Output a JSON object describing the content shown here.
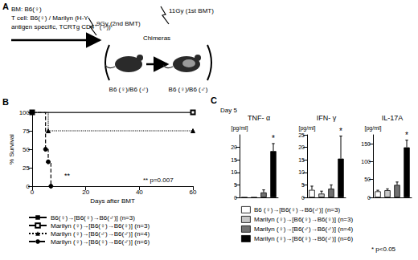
{
  "panel_labels": [
    "A",
    "B",
    "C"
  ],
  "diagram": {
    "source_lines": [
      "BM: B6(♀)",
      "T cell: B6(♀) / Marilyn (H-Y",
      "antigen specific, TCRTg CD4⁺ (♀))"
    ],
    "second_irradiation": "9Gy (2nd BMT)",
    "group_title": "Chimeras",
    "first_irradiation": "11Gy (1st BMT)",
    "recipients": [
      "B6 (♀)/B6 (♂)",
      "B6 (♀)/B6 (♂)"
    ]
  },
  "panel_c": {
    "subtitle": "Day 5",
    "note": "* p<0.05"
  },
  "chart_data": [
    {
      "type": "survival",
      "x_label": "Days after BMT",
      "y_label": "% Survival",
      "xlim": [
        0,
        60
      ],
      "xticks": [
        0,
        20,
        40,
        60
      ],
      "ylim": [
        0,
        100
      ],
      "yticks": [
        0,
        25,
        50,
        75,
        100
      ],
      "grid": false,
      "legend": "bottom",
      "annotations": [
        "**",
        "** p=0.007"
      ],
      "series": [
        {
          "name": "B6(♀)→[B6(♀)→B6(♂)] (n=3)",
          "color": "#000000",
          "marker": "square",
          "line_style": "solid",
          "x": [
            0,
            60
          ],
          "values": [
            100,
            100
          ]
        },
        {
          "name": "Marilyn (♀)→[B6(♀)→B6(♀)] (n=3)",
          "color": "#000000",
          "marker": "open_square",
          "line_style": "solid",
          "x": [
            0,
            60
          ],
          "values": [
            100,
            100
          ]
        },
        {
          "name": "Marilyn (♀)→[B6(♂)→B6(♂)] (n=4)",
          "color": "#000000",
          "marker": "triangle",
          "line_style": "dotted",
          "x": [
            0,
            6,
            60
          ],
          "values": [
            100,
            75,
            75
          ]
        },
        {
          "name": "Marilyn (♀)→[B6(♀)→B6(♂)] (n=6)",
          "color": "#000000",
          "marker": "circle",
          "line_style": "dashed",
          "x": [
            0,
            5,
            6,
            7
          ],
          "values": [
            100,
            50,
            33,
            0
          ]
        }
      ]
    },
    {
      "type": "bar",
      "title": "TNF- α",
      "y_label": "[pg/ml]",
      "ylim": [
        0,
        25
      ],
      "yticks": [
        0,
        5,
        10,
        15,
        20
      ],
      "tick_labels": "y",
      "grid": false,
      "legend": "bottom",
      "series": [
        {
          "name": "B6 (♀)→[B6(♀)→B6(♂)] (n=3)",
          "color": "#ffffff",
          "values": [
            0
          ],
          "error": [
            0
          ]
        },
        {
          "name": "Marilyn (♀)→[B6(♀)→B6(♀)] (n=3)",
          "color": "#c8c8c8",
          "values": [
            0
          ],
          "error": [
            0
          ]
        },
        {
          "name": "Marilyn (♀)→[B6(♂)→B6(♂)] (n=4)",
          "color": "#707070",
          "values": [
            2
          ],
          "error": [
            1
          ]
        },
        {
          "name": "Marilyn (♀)→[B6(♀)→B6(♂)] (n=6)",
          "color": "#000000",
          "values": [
            18.5
          ],
          "error": [
            3
          ],
          "annotation": "*"
        }
      ]
    },
    {
      "type": "bar",
      "title": "IFN- γ",
      "y_label": "[pg/ml]",
      "ylim": [
        0,
        25
      ],
      "yticks": [
        0,
        5,
        10,
        15,
        20,
        25
      ],
      "tick_labels": "y",
      "grid": false,
      "legend": "bottom",
      "series": [
        {
          "name": "B6 (♀)→[B6(♀)→B6(♂)] (n=3)",
          "color": "#ffffff",
          "values": [
            3
          ],
          "error": [
            1.5
          ]
        },
        {
          "name": "Marilyn (♀)→[B6(♀)→B6(♀)] (n=3)",
          "color": "#c8c8c8",
          "values": [
            1.5
          ],
          "error": [
            1
          ]
        },
        {
          "name": "Marilyn (♀)→[B6(♂)→B6(♂)] (n=4)",
          "color": "#707070",
          "values": [
            3.5
          ],
          "error": [
            1.5
          ]
        },
        {
          "name": "Marilyn (♀)→[B6(♀)→B6(♂)] (n=6)",
          "color": "#000000",
          "values": [
            15.5
          ],
          "error": [
            9
          ],
          "annotation": "*"
        }
      ]
    },
    {
      "type": "bar",
      "title": "IL-17A",
      "y_label": "[pg/ml]",
      "ylim": [
        0,
        175
      ],
      "yticks": [
        0,
        50,
        100,
        150
      ],
      "tick_labels": "y",
      "grid": false,
      "legend": "bottom",
      "series": [
        {
          "name": "B6 (♀)→[B6(♀)→B6(♂)] (n=3)",
          "color": "#ffffff",
          "values": [
            17
          ],
          "error": [
            3
          ]
        },
        {
          "name": "Marilyn (♀)→[B6(♀)→B6(♀)] (n=3)",
          "color": "#c8c8c8",
          "values": [
            20
          ],
          "error": [
            4
          ]
        },
        {
          "name": "Marilyn (♀)→[B6(♂)→B6(♂)] (n=4)",
          "color": "#707070",
          "values": [
            35
          ],
          "error": [
            8
          ]
        },
        {
          "name": "Marilyn (♀)→[B6(♀)→B6(♂)] (n=6)",
          "color": "#000000",
          "values": [
            140
          ],
          "error": [
            20
          ],
          "annotation": "*"
        }
      ]
    }
  ]
}
